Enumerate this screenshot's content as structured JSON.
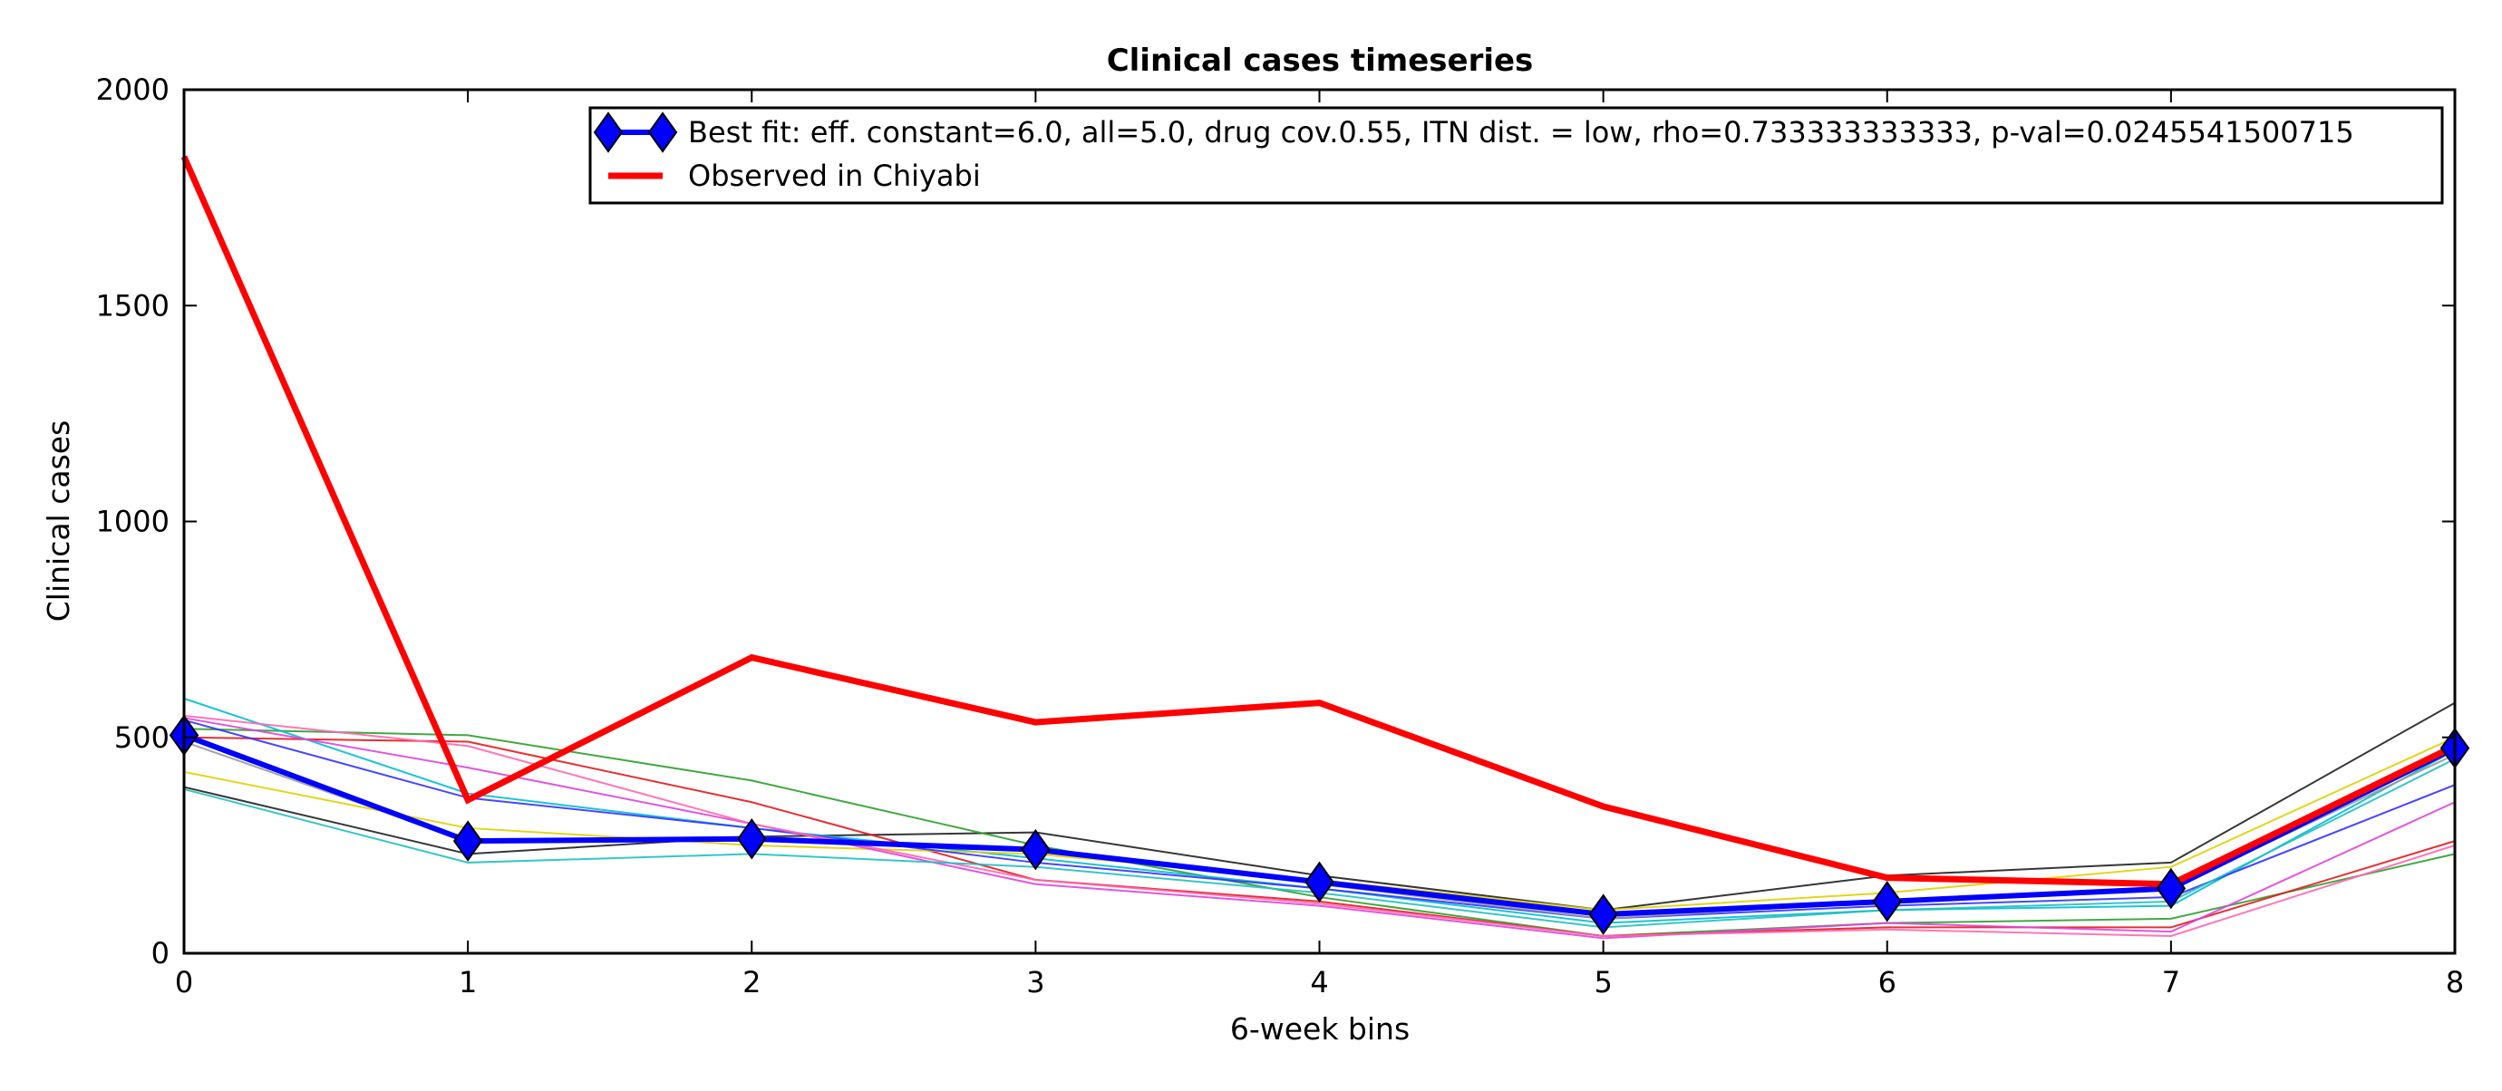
{
  "chart_data": {
    "type": "line",
    "title": "Clinical cases timeseries",
    "xlabel": "6-week bins",
    "ylabel": "Clinical cases",
    "xlim": [
      0,
      8
    ],
    "ylim": [
      0,
      2000
    ],
    "xticks": [
      0,
      1,
      2,
      3,
      4,
      5,
      6,
      7,
      8
    ],
    "yticks": [
      0,
      500,
      1000,
      1500,
      2000
    ],
    "grid": false,
    "legend_position": "top-right",
    "x": [
      0,
      1,
      2,
      3,
      4,
      5,
      6,
      7,
      8
    ],
    "background_series": [
      {
        "color": "#202020",
        "values": [
          385,
          230,
          270,
          280,
          180,
          100,
          180,
          210,
          580
        ]
      },
      {
        "color": "#2ca02c",
        "values": [
          520,
          505,
          400,
          250,
          130,
          40,
          70,
          80,
          230
        ]
      },
      {
        "color": "#e31a1c",
        "values": [
          500,
          490,
          350,
          170,
          120,
          40,
          60,
          60,
          260
        ]
      },
      {
        "color": "#00bcd4",
        "values": [
          590,
          370,
          290,
          220,
          150,
          70,
          100,
          110,
          470
        ]
      },
      {
        "color": "#e0d000",
        "values": [
          420,
          290,
          250,
          230,
          170,
          100,
          140,
          200,
          500
        ]
      },
      {
        "color": "#3333ff",
        "values": [
          540,
          360,
          290,
          210,
          150,
          80,
          110,
          130,
          390
        ]
      },
      {
        "color": "#dd44dd",
        "values": [
          545,
          430,
          300,
          160,
          110,
          35,
          70,
          50,
          350
        ]
      },
      {
        "color": "#ff66b0",
        "values": [
          550,
          480,
          300,
          170,
          115,
          40,
          55,
          40,
          250
        ]
      },
      {
        "color": "#20c0c0",
        "values": [
          380,
          210,
          230,
          200,
          140,
          60,
          100,
          120,
          450
        ]
      },
      {
        "color": "#999999",
        "values": [
          490,
          260,
          270,
          240,
          160,
          80,
          120,
          150,
          460
        ]
      }
    ],
    "series": [
      {
        "name": "Best fit: eff. constant=6.0, all=5.0, drug cov.0.55, ITN dist. = low, rho=0.733333333333, p-val=0.0245541500715",
        "color": "#0000ff",
        "marker": "diamond",
        "values": [
          505,
          260,
          265,
          240,
          165,
          90,
          120,
          150,
          475
        ]
      },
      {
        "name": "Observed in Chiyabi",
        "color": "#ff0000",
        "values": [
          1845,
          355,
          685,
          535,
          580,
          340,
          175,
          160,
          480
        ]
      }
    ]
  }
}
